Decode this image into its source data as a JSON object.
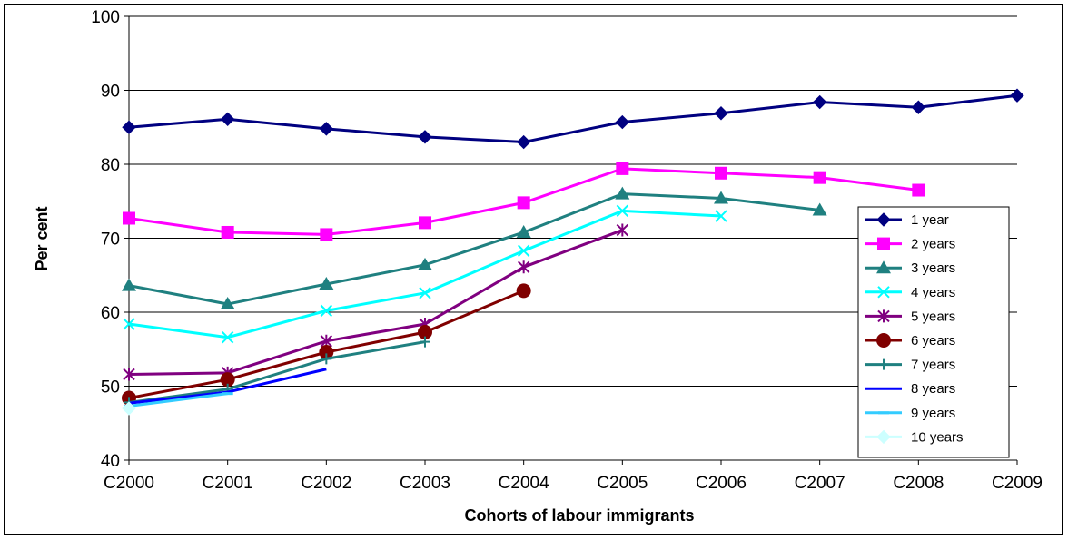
{
  "chart_data": {
    "type": "line",
    "title": "",
    "xlabel": "Cohorts of labour immigrants",
    "ylabel": "Per cent",
    "categories": [
      "C2000",
      "C2001",
      "C2002",
      "C2003",
      "C2004",
      "C2005",
      "C2006",
      "C2007",
      "C2008",
      "C2009"
    ],
    "ylim": [
      40,
      100
    ],
    "yticks": [
      40,
      50,
      60,
      70,
      80,
      90,
      100
    ],
    "grid": "horizontal",
    "legend_position": "right",
    "series": [
      {
        "name": "1 year",
        "color": "#000080",
        "marker": "diamond",
        "values": [
          85.0,
          86.1,
          84.8,
          83.7,
          83.0,
          85.7,
          86.9,
          88.4,
          87.7,
          89.3
        ]
      },
      {
        "name": "2 years",
        "color": "#ff00ff",
        "marker": "square",
        "values": [
          72.7,
          70.8,
          70.5,
          72.1,
          74.8,
          79.4,
          78.8,
          78.2,
          76.5,
          null
        ]
      },
      {
        "name": "3 years",
        "color": "#1f8080",
        "marker": "triangle",
        "values": [
          63.6,
          61.1,
          63.8,
          66.4,
          70.8,
          76.0,
          75.4,
          73.8,
          null,
          null
        ]
      },
      {
        "name": "4 years",
        "color": "#00ffff",
        "marker": "x",
        "values": [
          58.4,
          56.6,
          60.2,
          62.6,
          68.3,
          73.7,
          73.0,
          null,
          null,
          null
        ]
      },
      {
        "name": "5 years",
        "color": "#800080",
        "marker": "star",
        "values": [
          51.6,
          51.8,
          56.1,
          58.4,
          66.1,
          71.1,
          null,
          null,
          null,
          null
        ]
      },
      {
        "name": "6 years",
        "color": "#800000",
        "marker": "circle",
        "values": [
          48.4,
          50.9,
          54.6,
          57.3,
          62.9,
          null,
          null,
          null,
          null,
          null
        ]
      },
      {
        "name": "7 years",
        "color": "#1f8080",
        "marker": "plus",
        "values": [
          47.8,
          49.6,
          53.7,
          56.0,
          null,
          null,
          null,
          null,
          null,
          null
        ]
      },
      {
        "name": "8 years",
        "color": "#0000ff",
        "marker": "none",
        "values": [
          47.7,
          49.2,
          52.3,
          null,
          null,
          null,
          null,
          null,
          null,
          null
        ]
      },
      {
        "name": "9 years",
        "color": "#33ccff",
        "marker": "dash",
        "values": [
          47.3,
          49.0,
          null,
          null,
          null,
          null,
          null,
          null,
          null,
          null
        ]
      },
      {
        "name": "10 years",
        "color": "#ccffff",
        "marker": "diamond",
        "values": [
          47.0,
          null,
          null,
          null,
          null,
          null,
          null,
          null,
          null,
          null
        ]
      }
    ]
  }
}
